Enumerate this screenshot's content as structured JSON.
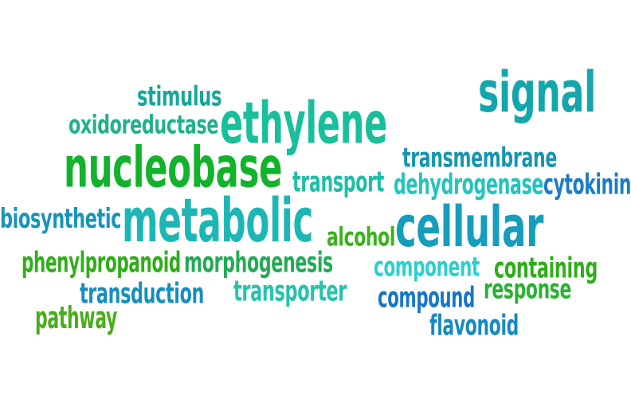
{
  "words": [
    {
      "key": "signal",
      "text": "signal",
      "color": "#13a6ac"
    },
    {
      "key": "stimulus",
      "text": "stimulus",
      "color": "#17a69d"
    },
    {
      "key": "oxidoreductase",
      "text": "oxidoreductase",
      "color": "#21b08d"
    },
    {
      "key": "ethylene",
      "text": "ethylene",
      "color": "#19bf9c"
    },
    {
      "key": "nucleobase",
      "text": "nucleobase",
      "color": "#12b32b"
    },
    {
      "key": "transmembrane",
      "text": "transmembrane",
      "color": "#1595b3"
    },
    {
      "key": "transport",
      "text": "transport",
      "color": "#1dbfa8"
    },
    {
      "key": "dehydrogenase",
      "text": "dehydrogenase",
      "color": "#23c3c0"
    },
    {
      "key": "cytokinin",
      "text": "cytokinin",
      "color": "#1b7cc4"
    },
    {
      "key": "biosynthetic",
      "text": "biosynthetic",
      "color": "#1894bb"
    },
    {
      "key": "metabolic",
      "text": "metabolic",
      "color": "#1cb7b5"
    },
    {
      "key": "alcohol",
      "text": "alcohol",
      "color": "#3ab219"
    },
    {
      "key": "cellular",
      "text": "cellular",
      "color": "#159dbe"
    },
    {
      "key": "phenylpropanoid",
      "text": "phenylpropanoid",
      "color": "#2eae17"
    },
    {
      "key": "morphogenesis",
      "text": "morphogenesis",
      "color": "#22ab55"
    },
    {
      "key": "component",
      "text": "component",
      "color": "#2ad0d0"
    },
    {
      "key": "containing",
      "text": "containing",
      "color": "#30ad1b"
    },
    {
      "key": "transduction",
      "text": "transduction",
      "color": "#168fbf"
    },
    {
      "key": "transporter",
      "text": "transporter",
      "color": "#26c3ae"
    },
    {
      "key": "compound",
      "text": "compound",
      "color": "#1776c8"
    },
    {
      "key": "response",
      "text": "response",
      "color": "#27b22f"
    },
    {
      "key": "pathway",
      "text": "pathway",
      "color": "#48ad1a"
    },
    {
      "key": "flavonoid",
      "text": "flavonoid",
      "color": "#1888c3"
    }
  ]
}
